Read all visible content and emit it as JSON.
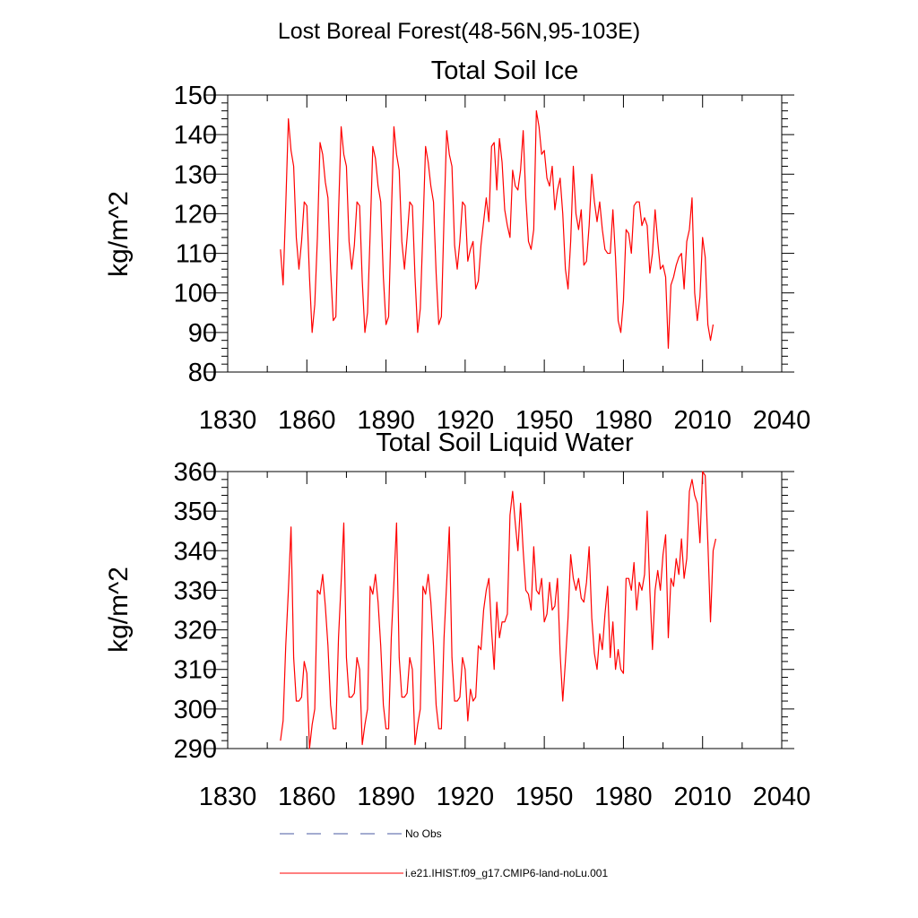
{
  "figure": {
    "title": "Lost Boreal Forest(48-56N,95-103E)"
  },
  "chart_data": [
    {
      "type": "line",
      "title": "Total Soil Ice",
      "xlabel": "",
      "ylabel": "kg/m^2",
      "xlim": [
        1830,
        2040
      ],
      "ylim": [
        80,
        150
      ],
      "xticks": [
        1830,
        1860,
        1890,
        1920,
        1950,
        1980,
        2010,
        2040
      ],
      "yticks": [
        80,
        90,
        100,
        110,
        120,
        130,
        140,
        150
      ],
      "grid": false,
      "series": [
        {
          "name": "i.e21.IHIST.f09_g17.CMIP6-land-noLu.001",
          "color": "#ff0000",
          "x_start": 1850,
          "x_step": 1,
          "values": [
            111,
            102,
            122,
            144,
            136,
            132,
            114,
            106,
            113,
            123,
            122,
            104,
            90,
            97,
            114,
            138,
            135,
            128,
            124,
            106,
            93,
            94,
            120,
            142,
            135,
            132,
            113,
            106,
            112,
            123,
            122,
            103,
            90,
            95,
            115,
            137,
            134,
            127,
            123,
            104,
            92,
            94,
            119,
            142,
            135,
            131,
            113,
            106,
            114,
            123,
            122,
            104,
            90,
            96,
            116,
            137,
            133,
            127,
            123,
            105,
            92,
            94,
            119,
            141,
            135,
            132,
            112,
            106,
            113,
            123,
            122,
            108,
            111,
            113,
            101,
            103,
            112,
            118,
            124,
            118,
            137,
            138,
            126,
            139,
            133,
            121,
            117,
            114,
            131,
            127,
            126,
            131,
            141,
            124,
            113,
            111,
            116,
            146,
            142,
            135,
            136,
            129,
            127,
            132,
            121,
            126,
            129,
            120,
            106,
            101,
            113,
            132,
            120,
            116,
            121,
            107,
            108,
            117,
            130,
            123,
            118,
            123,
            116,
            111,
            110,
            110,
            121,
            109,
            93,
            90,
            98,
            116,
            115,
            110,
            122,
            123,
            123,
            117,
            119,
            117,
            105,
            110,
            121,
            113,
            106,
            107,
            104,
            86,
            102,
            104,
            107,
            109,
            110,
            101,
            113,
            116,
            124,
            100,
            93,
            99,
            114,
            109,
            92,
            88,
            92
          ]
        }
      ]
    },
    {
      "type": "line",
      "title": "Total Soil Liquid Water",
      "xlabel": "",
      "ylabel": "kg/m^2",
      "xlim": [
        1830,
        2040
      ],
      "ylim": [
        290,
        360
      ],
      "xticks": [
        1830,
        1860,
        1890,
        1920,
        1950,
        1980,
        2010,
        2040
      ],
      "yticks": [
        290,
        300,
        310,
        320,
        330,
        340,
        350,
        360
      ],
      "grid": false,
      "series": [
        {
          "name": "i.e21.IHIST.f09_g17.CMIP6-land-noLu.001",
          "color": "#ff0000",
          "x_start": 1850,
          "x_step": 1,
          "values": [
            292,
            297,
            316,
            330,
            346,
            313,
            302,
            302,
            303,
            312,
            309,
            290,
            296,
            300,
            330,
            329,
            334,
            326,
            316,
            301,
            295,
            295,
            318,
            332,
            347,
            313,
            303,
            303,
            304,
            313,
            310,
            291,
            296,
            300,
            331,
            329,
            334,
            327,
            316,
            301,
            295,
            295,
            318,
            332,
            347,
            313,
            303,
            303,
            304,
            313,
            310,
            291,
            296,
            300,
            331,
            329,
            334,
            327,
            316,
            301,
            295,
            295,
            318,
            332,
            346,
            313,
            302,
            302,
            303,
            313,
            310,
            297,
            305,
            302,
            303,
            316,
            315,
            325,
            330,
            333,
            320,
            310,
            327,
            318,
            322,
            322,
            324,
            349,
            355,
            347,
            340,
            352,
            340,
            330,
            329,
            325,
            341,
            330,
            329,
            333,
            322,
            324,
            332,
            325,
            326,
            333,
            314,
            302,
            312,
            323,
            339,
            333,
            330,
            333,
            328,
            327,
            332,
            341,
            323,
            314,
            310,
            319,
            315,
            324,
            331,
            313,
            322,
            310,
            315,
            310,
            309,
            333,
            333,
            330,
            337,
            325,
            332,
            330,
            334,
            350,
            330,
            315,
            330,
            335,
            330,
            339,
            344,
            318,
            333,
            331,
            338,
            334,
            343,
            333,
            338,
            355,
            358,
            354,
            352,
            342,
            360,
            359,
            342,
            322,
            340,
            343
          ]
        }
      ]
    }
  ],
  "legend": {
    "placement": "bottom-left",
    "entries": [
      {
        "label": "No Obs",
        "color": "#4a5aa0",
        "style": "dashed"
      },
      {
        "label": "i.e21.IHIST.f09_g17.CMIP6-land-noLu.001",
        "color": "#ff0000",
        "style": "solid"
      }
    ]
  }
}
